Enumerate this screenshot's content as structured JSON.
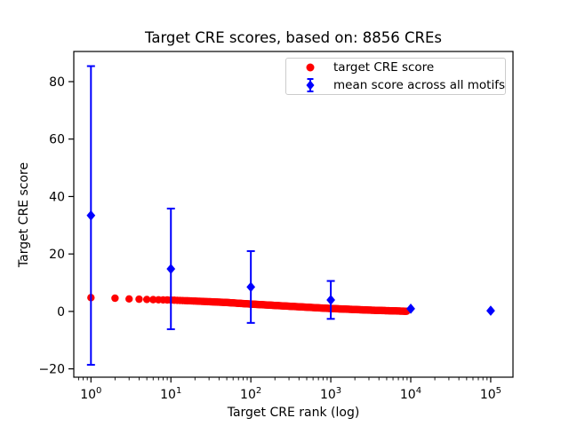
{
  "chart_data": {
    "type": "scatter",
    "title": "Target CRE scores, based on: 8856 CREs",
    "xlabel": "Target CRE rank (log)",
    "ylabel": "Target CRE score",
    "x_scale": "log",
    "xlim": [
      0.61,
      190000
    ],
    "ylim": [
      -22.9,
      90.5
    ],
    "x_tick_base": "10",
    "x_tick_exponents": [
      0,
      1,
      2,
      3,
      4,
      5
    ],
    "x_major_ticks": [
      1,
      10,
      100,
      1000,
      10000,
      100000
    ],
    "y_ticks": [
      -20,
      0,
      20,
      40,
      60,
      80
    ],
    "grid": false,
    "legend_position": "upper right",
    "series": [
      {
        "name": "target CRE score",
        "marker": "circle",
        "color": "#ff0000",
        "count": 8856,
        "anchor_points": {
          "rank": [
            1,
            2,
            3,
            4,
            5,
            7,
            10,
            20,
            50,
            100,
            300,
            1000,
            3000,
            8856
          ],
          "score": [
            4.8,
            4.6,
            4.35,
            4.25,
            4.15,
            4.05,
            3.95,
            3.6,
            3.1,
            2.55,
            1.8,
            1.0,
            0.45,
            0.05
          ]
        }
      },
      {
        "name": "mean score across all motifs",
        "marker": "diamond",
        "color": "#0000ff",
        "x": [
          1,
          10,
          100,
          1000,
          10000,
          100000
        ],
        "y": [
          33.4,
          14.8,
          8.5,
          4.0,
          0.95,
          0.25
        ],
        "yerr": [
          52.0,
          21.0,
          12.5,
          6.6,
          1.2,
          0.4
        ]
      }
    ]
  }
}
